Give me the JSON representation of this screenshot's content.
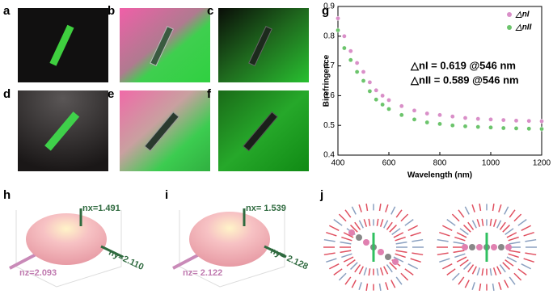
{
  "panel_labels": [
    "a",
    "b",
    "c",
    "d",
    "e",
    "f",
    "g",
    "h",
    "i",
    "j"
  ],
  "chart_data": {
    "type": "scatter",
    "xlabel": "Wavelength (nm)",
    "ylabel": "Birefringence",
    "x": [
      400,
      425,
      450,
      475,
      500,
      525,
      550,
      575,
      600,
      650,
      700,
      750,
      800,
      850,
      900,
      950,
      1000,
      1050,
      1100,
      1150,
      1200
    ],
    "series": [
      {
        "name": "△nI",
        "color": "#d98fc8",
        "values": [
          0.86,
          0.8,
          0.75,
          0.71,
          0.68,
          0.645,
          0.618,
          0.6,
          0.585,
          0.565,
          0.55,
          0.54,
          0.535,
          0.53,
          0.525,
          0.522,
          0.52,
          0.518,
          0.516,
          0.515,
          0.514
        ]
      },
      {
        "name": "△nII",
        "color": "#6cc46c",
        "values": [
          0.82,
          0.76,
          0.72,
          0.68,
          0.65,
          0.615,
          0.587,
          0.57,
          0.555,
          0.535,
          0.52,
          0.51,
          0.505,
          0.5,
          0.497,
          0.495,
          0.493,
          0.491,
          0.49,
          0.489,
          0.488
        ]
      }
    ],
    "xlim": [
      400,
      1200
    ],
    "ylim": [
      0.4,
      0.9
    ],
    "xticks": [
      400,
      600,
      800,
      1000,
      1200
    ],
    "yticks": [
      0.4,
      0.5,
      0.6,
      0.7,
      0.8,
      0.9
    ],
    "legend": "upper right",
    "annotations": [
      "△nI  = 0.619 @546 nm",
      "△nII = 0.589 @546 nm"
    ]
  },
  "ellipsoid_h": {
    "labels": [
      "nx=1.491",
      "ny=2.110",
      "nz=2.093"
    ]
  },
  "ellipsoid_i": {
    "labels": [
      "nx= 1.539",
      "ny= 2.128",
      "nz= 2.122"
    ]
  }
}
